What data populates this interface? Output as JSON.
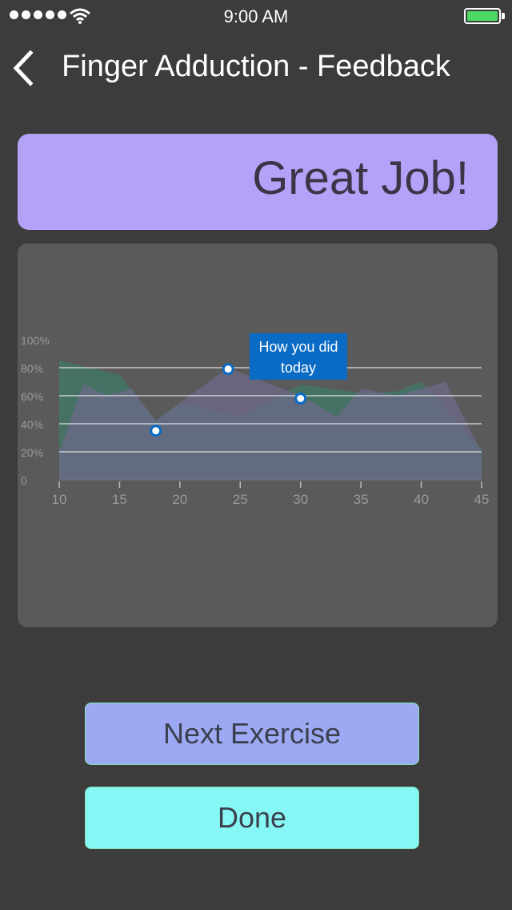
{
  "status_bar": {
    "time": "9:00 AM",
    "signal_icon": "signal-dots-icon",
    "wifi_icon": "wifi-icon",
    "battery_icon": "battery-icon",
    "battery_color": "#4cd964"
  },
  "nav": {
    "title": "Finger Adduction - Feedback",
    "back_icon": "chevron-left-icon"
  },
  "banner": {
    "text": "Great Job!",
    "color": "#b4a2f8"
  },
  "chart_data": {
    "type": "area",
    "x": [
      10,
      12,
      14,
      15,
      17,
      18,
      20,
      22,
      24,
      25,
      27,
      29,
      30,
      33,
      35,
      38,
      40,
      42,
      45
    ],
    "xlim": [
      10,
      45
    ],
    "ylim": [
      0,
      100
    ],
    "xticks": [
      "10",
      "15",
      "20",
      "25",
      "30",
      "35",
      "40",
      "45"
    ],
    "yticks": [
      "0",
      "20%",
      "40%",
      "60%",
      "80%",
      "100%"
    ],
    "series": [
      {
        "color": "#3d7a6a",
        "x": [
          10,
          15,
          18,
          20,
          25,
          30,
          35,
          38,
          40,
          45
        ],
        "values": [
          85,
          75,
          42,
          55,
          45,
          68,
          62,
          63,
          70,
          22
        ]
      },
      {
        "color": "#6e6a8a",
        "x": [
          10,
          12,
          14,
          16,
          18,
          20,
          24,
          27,
          30,
          33,
          35,
          38,
          42,
          45
        ],
        "values": [
          20,
          68,
          60,
          65,
          42,
          55,
          80,
          70,
          60,
          45,
          65,
          60,
          70,
          20
        ]
      }
    ],
    "markers": [
      {
        "x": 18,
        "y": 35
      },
      {
        "x": 24,
        "y": 79
      },
      {
        "x": 30,
        "y": 58
      }
    ],
    "annotation": "How you did today",
    "annotation_color": "#0a6bc4"
  },
  "buttons": {
    "next_label": "Next Exercise",
    "done_label": "Done",
    "next_color": "#9daaf3",
    "done_color": "#86f7f4"
  }
}
